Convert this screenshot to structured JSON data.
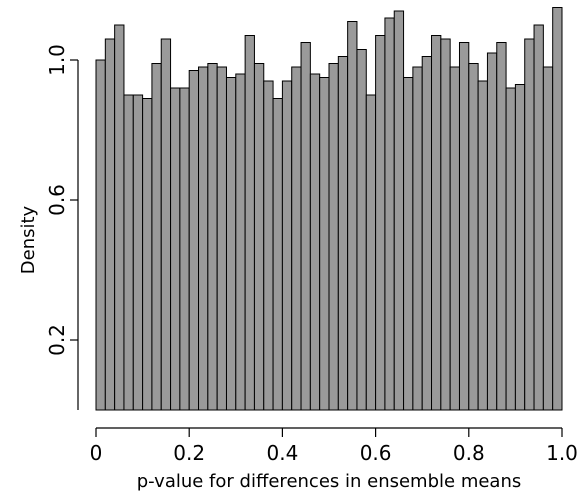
{
  "chart_data": {
    "type": "bar",
    "subtype": "histogram",
    "xlabel": "p-value for differences in ensemble means",
    "ylabel": "Density",
    "xlim": [
      0,
      1
    ],
    "ylim": [
      0,
      1.15
    ],
    "grid": false,
    "bar_color": "#9a9a9a",
    "x_ticks": [
      0,
      0.2,
      0.4,
      0.6,
      0.8,
      1.0
    ],
    "x_tick_labels": [
      "0",
      "0.2",
      "0.4",
      "0.6",
      "0.8",
      "1.0"
    ],
    "y_ticks": [
      0.2,
      0.6,
      1.0
    ],
    "y_tick_labels": [
      "0.2",
      "0.6",
      "1.0"
    ],
    "bin_width": 0.02,
    "bins_start": [
      0.0,
      0.02,
      0.04,
      0.06,
      0.08,
      0.1,
      0.12,
      0.14,
      0.16,
      0.18,
      0.2,
      0.22,
      0.24,
      0.26,
      0.28,
      0.3,
      0.32,
      0.34,
      0.36,
      0.38,
      0.4,
      0.42,
      0.44,
      0.46,
      0.48,
      0.5,
      0.52,
      0.54,
      0.56,
      0.58,
      0.6,
      0.62,
      0.64,
      0.66,
      0.68,
      0.7,
      0.72,
      0.74,
      0.76,
      0.78,
      0.8,
      0.82,
      0.84,
      0.86,
      0.88,
      0.9,
      0.92,
      0.94,
      0.96,
      0.98
    ],
    "values": [
      1.0,
      1.06,
      1.1,
      0.9,
      0.9,
      0.89,
      0.99,
      1.06,
      0.92,
      0.92,
      0.97,
      0.98,
      0.99,
      0.98,
      0.95,
      0.96,
      1.07,
      0.99,
      0.94,
      0.89,
      0.94,
      0.98,
      1.05,
      0.96,
      0.95,
      0.99,
      1.01,
      1.11,
      1.03,
      0.9,
      1.07,
      1.12,
      1.14,
      0.95,
      0.98,
      1.01,
      1.07,
      1.06,
      0.98,
      1.05,
      0.99,
      0.94,
      1.02,
      1.05,
      0.92,
      0.93,
      1.06,
      1.1,
      0.98,
      1.15
    ]
  }
}
